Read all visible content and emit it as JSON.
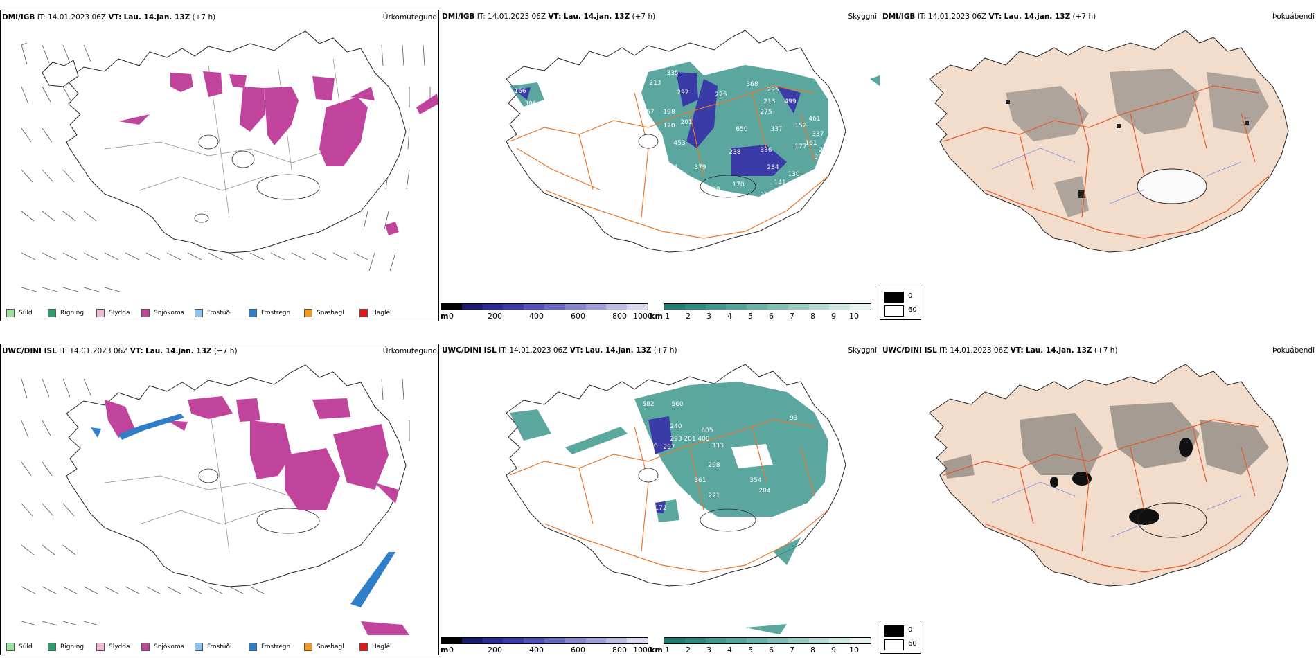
{
  "rows": [
    {
      "model": "DMI/IGB",
      "it_label": "IT:",
      "it_value": "14.01.2023 06Z",
      "vt_label": "VT:",
      "vt_value": "Lau. 14.jan. 13Z",
      "lead": "(+7 h)"
    },
    {
      "model": "UWC/DINI ISL",
      "it_label": "IT:",
      "it_value": "14.01.2023 06Z",
      "vt_label": "VT:",
      "vt_value": "Lau. 14.jan. 13Z",
      "lead": "(+7 h)"
    }
  ],
  "panel_titles": {
    "precip": "Úrkomutegund",
    "cloud": "Skyggni",
    "fog": "Þokuábendi"
  },
  "precip_legend": [
    {
      "label": "Súld",
      "color": "#9be39b"
    },
    {
      "label": "Rigning",
      "color": "#2e9e6b"
    },
    {
      "label": "Slydda",
      "color": "#f2b6d6"
    },
    {
      "label": "Snjókoma",
      "color": "#c0449c"
    },
    {
      "label": "Frostúði",
      "color": "#8ec5f0"
    },
    {
      "label": "Frostregn",
      "color": "#2f7fc8"
    },
    {
      "label": "Snæhagl",
      "color": "#f29a1e"
    },
    {
      "label": "Haglél",
      "color": "#e01818"
    }
  ],
  "height_bar": {
    "unit": "m",
    "ticks": [
      "0",
      "200",
      "400",
      "600",
      "800",
      "1000"
    ],
    "colors": [
      "#000000",
      "#1a1a6e",
      "#2a2a94",
      "#3b3ba8",
      "#5050b5",
      "#6a6ac0",
      "#8686cc",
      "#a0a0d8",
      "#bdbde4",
      "#d8d8f0"
    ]
  },
  "vis_bar": {
    "unit": "km",
    "ticks": [
      "1",
      "2",
      "3",
      "4",
      "5",
      "6",
      "7",
      "8",
      "9",
      "10"
    ],
    "colors": [
      "#1f7a72",
      "#2e8a80",
      "#3e988e",
      "#52a59b",
      "#68b2a9",
      "#80bfb7",
      "#99ccc5",
      "#b2d9d3",
      "#cce6e2",
      "#e6f2f0"
    ]
  },
  "fog_legend": {
    "items": [
      {
        "label": "0",
        "color": "#000000"
      },
      {
        "label": "60",
        "color": "#ffffff"
      }
    ]
  },
  "cloud_labels_top": [
    "166",
    "306",
    "27",
    "22",
    "213",
    "335",
    "167",
    "198",
    "292",
    "120",
    "201",
    "453",
    "173",
    "481",
    "379",
    "289",
    "178",
    "233",
    "220",
    "141",
    "130",
    "234",
    "336",
    "238",
    "650",
    "275",
    "368",
    "295",
    "213",
    "275",
    "499",
    "337",
    "152",
    "461",
    "337",
    "177",
    "161",
    "98",
    "247"
  ],
  "cloud_labels_bottom": [
    "944",
    "582",
    "560",
    "240",
    "176",
    "297",
    "293",
    "201",
    "400",
    "605",
    "333",
    "298",
    "93",
    "361",
    "371",
    "221",
    "354",
    "204",
    "172",
    "14"
  ],
  "colors": {
    "snow": "#c0449c",
    "freezing_rain": "#2f7fc8",
    "vis_teal": "#3e988e",
    "cloud_blue": "#3b3ba8",
    "roads": "#e8762a",
    "land_fog": "#f2dccb",
    "coast": "#222222"
  }
}
